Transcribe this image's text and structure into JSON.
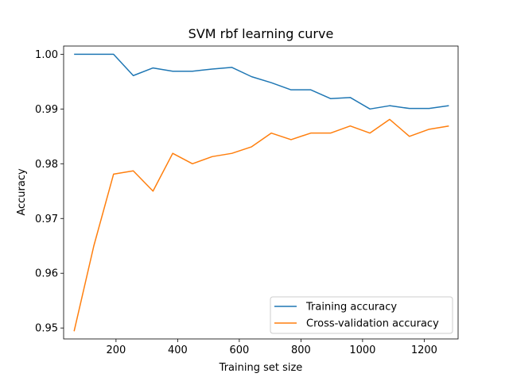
{
  "chart_data": {
    "type": "line",
    "title": "SVM rbf learning curve",
    "xlabel": "Training set size",
    "ylabel": "Accuracy",
    "xlim": [
      30,
      1310
    ],
    "ylim": [
      0.948,
      1.0015
    ],
    "xticks": [
      200,
      400,
      600,
      800,
      1000,
      1200
    ],
    "xtick_labels": [
      "200",
      "400",
      "600",
      "800",
      "1000",
      "1200"
    ],
    "yticks": [
      0.95,
      0.96,
      0.97,
      0.98,
      0.99,
      1.0
    ],
    "ytick_labels": [
      "0.95",
      "0.96",
      "0.97",
      "0.98",
      "0.99",
      "1.00"
    ],
    "grid": false,
    "legend_position": "lower-right",
    "x": [
      64,
      128,
      192,
      256,
      320,
      384,
      448,
      512,
      576,
      640,
      704,
      768,
      832,
      896,
      960,
      1024,
      1088,
      1152,
      1216,
      1280
    ],
    "series": [
      {
        "name": "Training accuracy",
        "color": "#1f77b4",
        "values": [
          1.0,
          1.0,
          1.0,
          0.9961,
          0.9975,
          0.9969,
          0.9969,
          0.9973,
          0.9976,
          0.9959,
          0.9948,
          0.9935,
          0.9935,
          0.9919,
          0.9921,
          0.99,
          0.9906,
          0.9901,
          0.9901,
          0.9906
        ]
      },
      {
        "name": "Cross-validation accuracy",
        "color": "#ff7f0e",
        "values": [
          0.9494,
          0.965,
          0.9781,
          0.9787,
          0.975,
          0.9819,
          0.98,
          0.9813,
          0.9819,
          0.9831,
          0.9856,
          0.9844,
          0.9856,
          0.9856,
          0.9869,
          0.9856,
          0.9881,
          0.985,
          0.9863,
          0.9869
        ]
      }
    ]
  }
}
